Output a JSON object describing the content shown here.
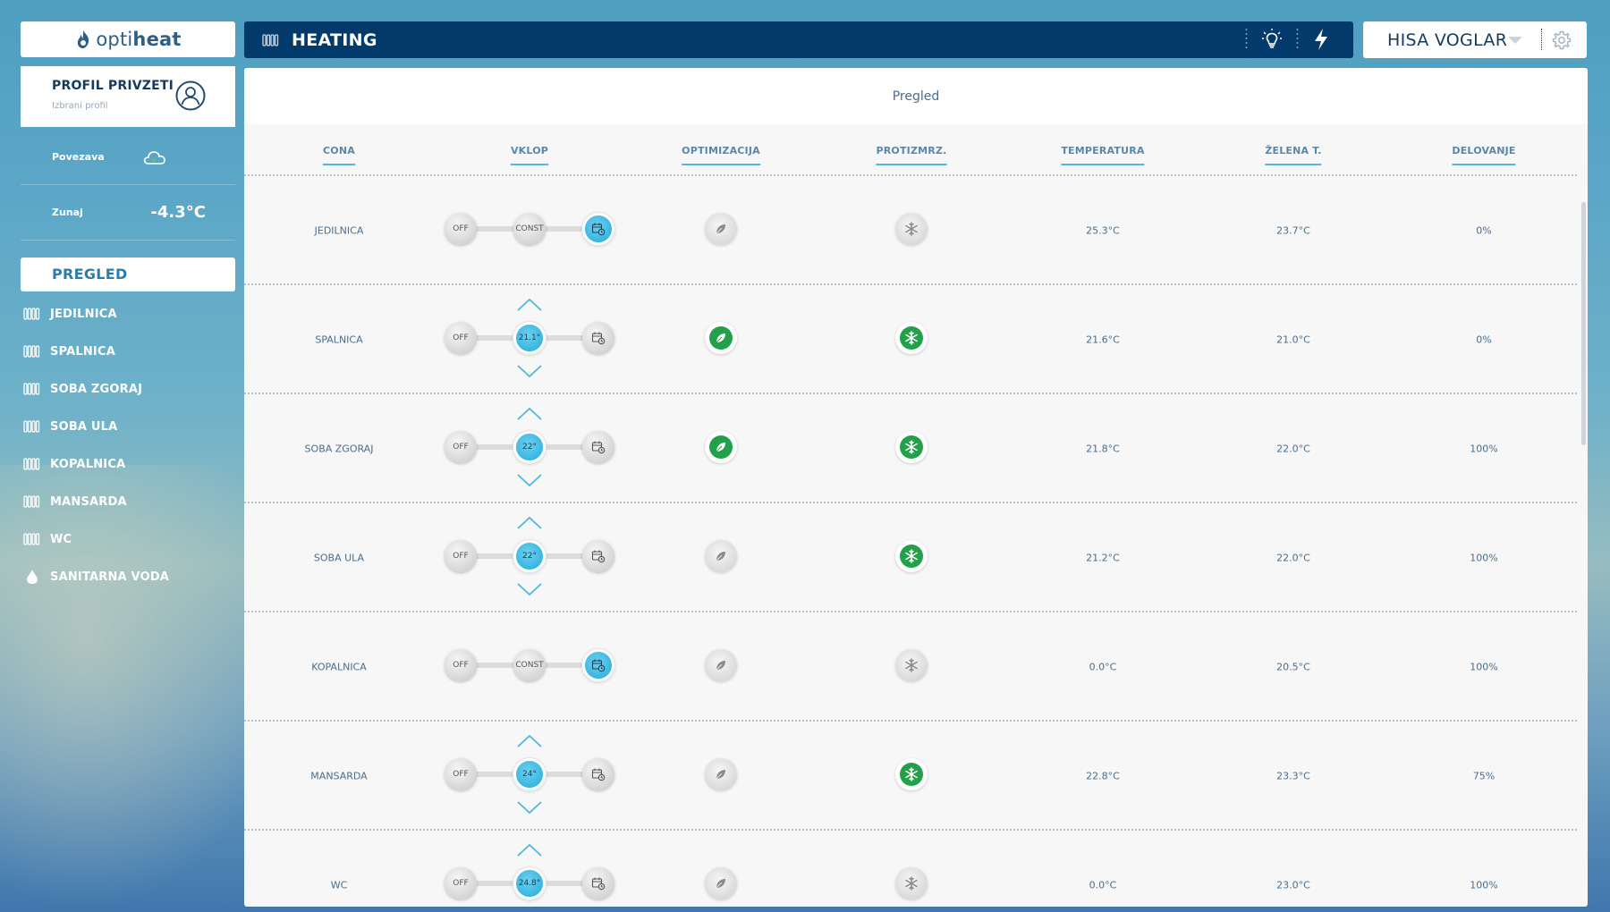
{
  "brand": {
    "logo_prefix": "opti",
    "logo_suffix": "heat"
  },
  "profile": {
    "title": "PROFIL PRIVZETI",
    "subtitle": "Izbrani profil"
  },
  "info": [
    {
      "label": "Povezava",
      "value": "",
      "icon": "cloud-icon"
    },
    {
      "label": "Zunaj",
      "value": "-4.3°C"
    }
  ],
  "nav": {
    "overview": "PREGLED",
    "items": [
      {
        "label": "JEDILNICA",
        "icon": "radiator-icon"
      },
      {
        "label": "SPALNICA",
        "icon": "radiator-icon"
      },
      {
        "label": "SOBA ZGORAJ",
        "icon": "radiator-icon"
      },
      {
        "label": "SOBA ULA",
        "icon": "radiator-icon"
      },
      {
        "label": "KOPALNICA",
        "icon": "radiator-icon"
      },
      {
        "label": "MANSARDA",
        "icon": "radiator-icon"
      },
      {
        "label": "WC",
        "icon": "radiator-icon"
      },
      {
        "label": "SANITARNA VODA",
        "icon": "water-drop-icon"
      }
    ]
  },
  "header": {
    "title": "HEATING",
    "icons": [
      "radiator-icon",
      "lightbulb-icon",
      "lightning-icon"
    ]
  },
  "house": {
    "name": "HISA VOGLAR"
  },
  "panel": {
    "title": "Pregled",
    "columns": [
      "CONA",
      "VKLOP",
      "OPTIMIZACIJA",
      "PROTIZMRZ.",
      "TEMPERATURA",
      "ŽELENA T.",
      "DELOVANJE"
    ],
    "rows": [
      {
        "zone": "JEDILNICA",
        "off": "OFF",
        "mid": "CONST",
        "mode": "schedule",
        "opt": false,
        "frost": false,
        "temp": "25.3°C",
        "target": "23.7°C",
        "activity": "0%"
      },
      {
        "zone": "SPALNICA",
        "off": "OFF",
        "mid": "21.1°",
        "mode": "const",
        "opt": true,
        "frost": true,
        "temp": "21.6°C",
        "target": "21.0°C",
        "activity": "0%"
      },
      {
        "zone": "SOBA ZGORAJ",
        "off": "OFF",
        "mid": "22°",
        "mode": "const",
        "opt": true,
        "frost": true,
        "temp": "21.8°C",
        "target": "22.0°C",
        "activity": "100%"
      },
      {
        "zone": "SOBA ULA",
        "off": "OFF",
        "mid": "22°",
        "mode": "const",
        "opt": false,
        "frost": true,
        "temp": "21.2°C",
        "target": "22.0°C",
        "activity": "100%"
      },
      {
        "zone": "KOPALNICA",
        "off": "OFF",
        "mid": "CONST",
        "mode": "schedule",
        "opt": false,
        "frost": false,
        "temp": "0.0°C",
        "target": "20.5°C",
        "activity": "100%"
      },
      {
        "zone": "MANSARDA",
        "off": "OFF",
        "mid": "24°",
        "mode": "const",
        "opt": false,
        "frost": true,
        "temp": "22.8°C",
        "target": "23.3°C",
        "activity": "75%"
      },
      {
        "zone": "WC",
        "off": "OFF",
        "mid": "24.8°",
        "mode": "const",
        "opt": false,
        "frost": false,
        "temp": "0.0°C",
        "target": "23.0°C",
        "activity": "100%"
      }
    ]
  },
  "colors": {
    "header_bg": "#013a6b",
    "accent": "#4fb8dc",
    "active_knob": "#35b4e0",
    "green": "#22a04a"
  }
}
